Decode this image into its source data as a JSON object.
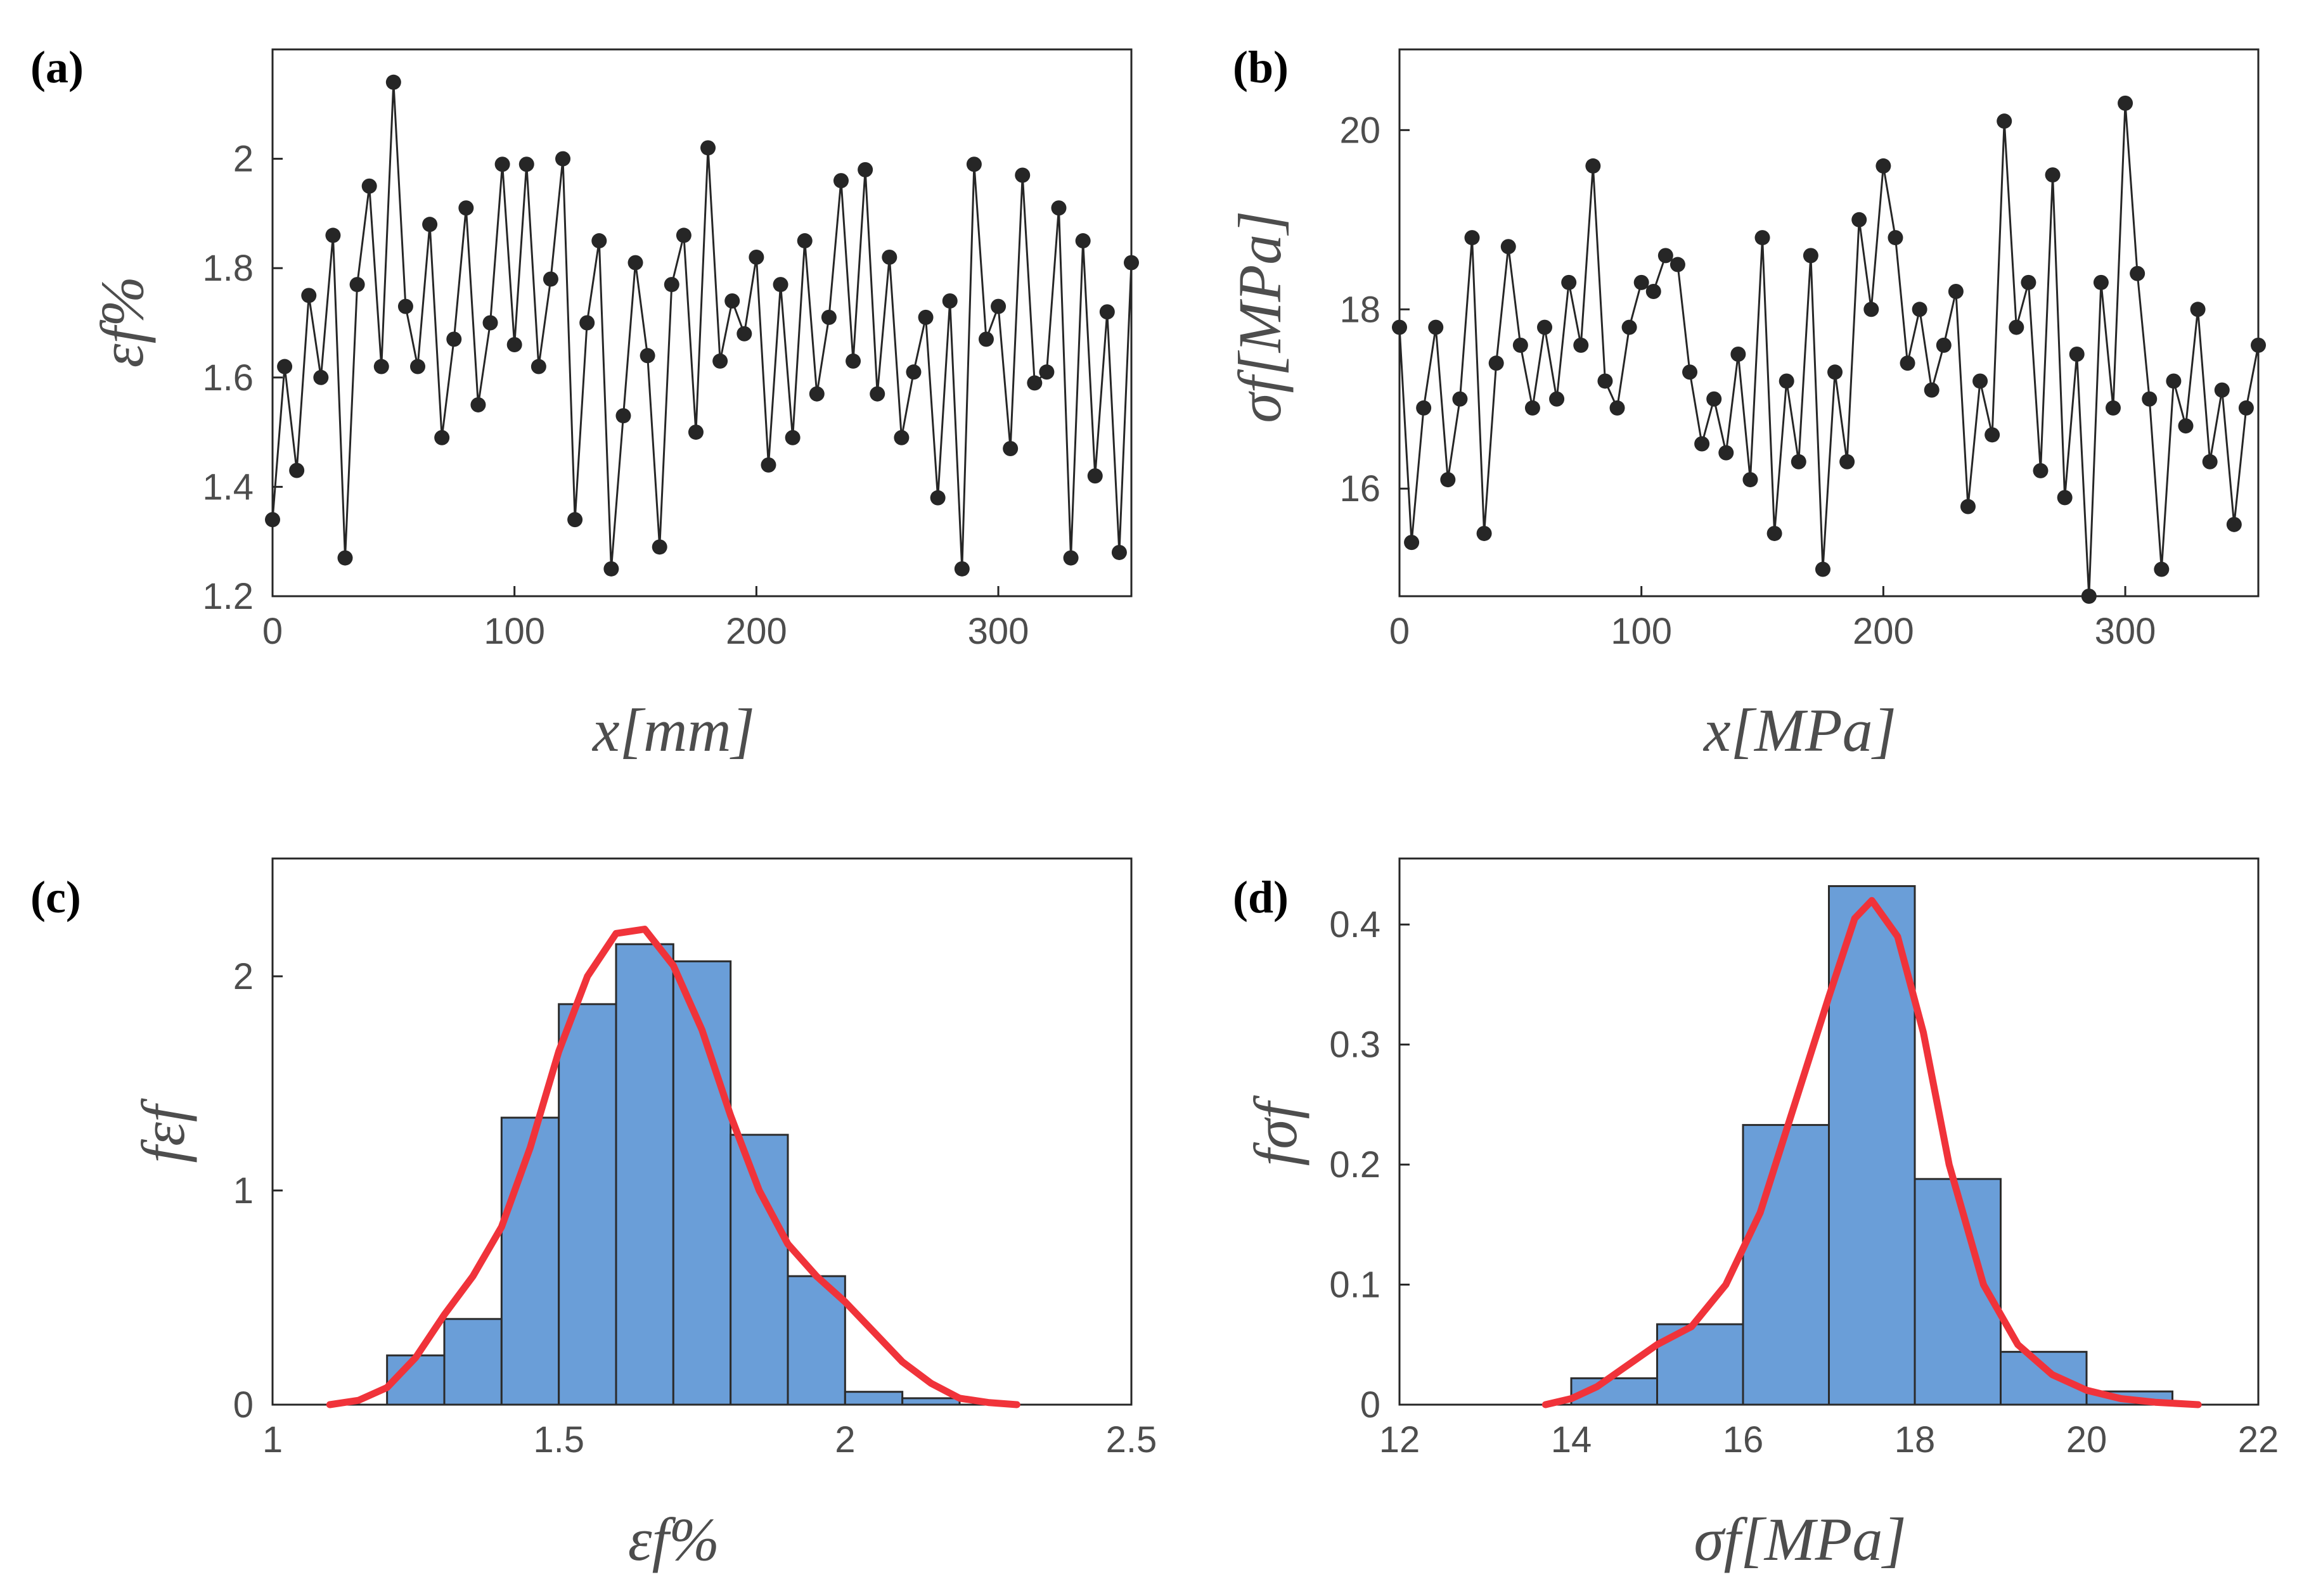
{
  "chart_data": [
    {
      "panel": "(a)",
      "type": "line",
      "marker": "dot",
      "xlabel": "x[mm]",
      "ylabel": "εf%",
      "xlim": [
        0,
        355
      ],
      "ylim": [
        1.2,
        2.2
      ],
      "xticks": [
        "0",
        "100",
        "200",
        "300"
      ],
      "yticks": [
        "1.2",
        "1.4",
        "1.6",
        "1.8",
        "2"
      ],
      "color": "#262626",
      "x": [
        0,
        5,
        10,
        15,
        20,
        25,
        30,
        35,
        40,
        45,
        50,
        55,
        60,
        65,
        70,
        75,
        80,
        85,
        90,
        95,
        100,
        105,
        110,
        115,
        120,
        125,
        130,
        135,
        140,
        145,
        150,
        155,
        160,
        165,
        170,
        175,
        180,
        185,
        190,
        195,
        200,
        205,
        210,
        215,
        220,
        225,
        230,
        235,
        240,
        245,
        250,
        255,
        260,
        265,
        270,
        275,
        280,
        285,
        290,
        295,
        300,
        305,
        310,
        315,
        320,
        325,
        330,
        335,
        340,
        345,
        350,
        355
      ],
      "y": [
        1.34,
        1.62,
        1.43,
        1.75,
        1.6,
        1.86,
        1.27,
        1.77,
        1.95,
        1.62,
        2.14,
        1.73,
        1.62,
        1.88,
        1.49,
        1.67,
        1.91,
        1.55,
        1.7,
        1.99,
        1.66,
        1.99,
        1.62,
        1.78,
        2.0,
        1.34,
        1.7,
        1.85,
        1.25,
        1.53,
        1.81,
        1.64,
        1.29,
        1.77,
        1.86,
        1.5,
        2.02,
        1.63,
        1.74,
        1.68,
        1.82,
        1.44,
        1.77,
        1.49,
        1.85,
        1.57,
        1.71,
        1.96,
        1.63,
        1.98,
        1.57,
        1.82,
        1.49,
        1.61,
        1.71,
        1.38,
        1.74,
        1.25,
        1.99,
        1.67,
        1.73,
        1.47,
        1.97,
        1.59,
        1.61,
        1.91,
        1.27,
        1.85,
        1.42,
        1.72,
        1.28,
        1.81
      ]
    },
    {
      "panel": "(b)",
      "type": "line",
      "marker": "dot",
      "xlabel": "x[MPa]",
      "ylabel": "σf[MPa]",
      "xlim": [
        0,
        355
      ],
      "ylim": [
        14.8,
        20.9
      ],
      "xticks": [
        "0",
        "100",
        "200",
        "300"
      ],
      "yticks": [
        "16",
        "18",
        "20"
      ],
      "color": "#262626",
      "x": [
        0,
        5,
        10,
        15,
        20,
        25,
        30,
        35,
        40,
        45,
        50,
        55,
        60,
        65,
        70,
        75,
        80,
        85,
        90,
        95,
        100,
        105,
        110,
        115,
        120,
        125,
        130,
        135,
        140,
        145,
        150,
        155,
        160,
        165,
        170,
        175,
        180,
        185,
        190,
        195,
        200,
        205,
        210,
        215,
        220,
        225,
        230,
        235,
        240,
        245,
        250,
        255,
        260,
        265,
        270,
        275,
        280,
        285,
        290,
        295,
        300,
        305,
        310,
        315,
        320,
        325,
        330,
        335,
        340,
        345,
        350,
        355
      ],
      "y": [
        17.8,
        15.4,
        16.9,
        17.8,
        16.1,
        17.0,
        18.8,
        15.5,
        17.4,
        18.7,
        17.6,
        16.9,
        17.8,
        17.0,
        18.3,
        17.6,
        19.6,
        17.2,
        16.9,
        17.8,
        18.3,
        18.2,
        18.6,
        18.5,
        17.3,
        16.5,
        17.0,
        16.4,
        17.5,
        16.1,
        18.8,
        15.5,
        17.2,
        16.3,
        18.6,
        15.1,
        17.3,
        16.3,
        19.0,
        18.0,
        19.6,
        18.8,
        17.4,
        18.0,
        17.1,
        17.6,
        18.2,
        15.8,
        17.2,
        16.6,
        20.1,
        17.8,
        18.3,
        16.2,
        19.5,
        15.9,
        17.5,
        14.8,
        18.3,
        16.9,
        20.3,
        18.4,
        17.0,
        15.1,
        17.2,
        16.7,
        18.0,
        16.3,
        17.1,
        15.6,
        16.9,
        17.6
      ]
    },
    {
      "panel": "(c)",
      "type": "histogram",
      "xlabel": "εf%",
      "ylabel": "fεf",
      "xlim": [
        1,
        2.5
      ],
      "ylim": [
        0,
        2.55
      ],
      "xticks": [
        "1",
        "1.5",
        "2",
        "2.5"
      ],
      "yticks": [
        "0",
        "1",
        "2"
      ],
      "bin_edges": [
        1.2,
        1.3,
        1.4,
        1.5,
        1.6,
        1.7,
        1.8,
        1.9,
        2.0,
        2.1,
        2.2
      ],
      "values": [
        0.23,
        0.4,
        1.34,
        1.87,
        2.15,
        2.07,
        1.26,
        0.6,
        0.06,
        0.03
      ],
      "bar_color": "#6a9ed8",
      "fit_color": "#f0333a",
      "fit_x": [
        1.1,
        1.15,
        1.2,
        1.25,
        1.3,
        1.35,
        1.4,
        1.45,
        1.5,
        1.55,
        1.6,
        1.65,
        1.7,
        1.75,
        1.8,
        1.85,
        1.9,
        1.95,
        2.0,
        2.05,
        2.1,
        2.15,
        2.2,
        2.25,
        2.3
      ],
      "fit_y": [
        0.0,
        0.02,
        0.08,
        0.22,
        0.42,
        0.6,
        0.83,
        1.2,
        1.65,
        2.0,
        2.2,
        2.22,
        2.05,
        1.75,
        1.35,
        1.0,
        0.75,
        0.6,
        0.48,
        0.34,
        0.2,
        0.1,
        0.03,
        0.01,
        0.0
      ]
    },
    {
      "panel": "(d)",
      "type": "histogram",
      "xlabel": "σf[MPa]",
      "ylabel": "fσf",
      "xlim": [
        12,
        22
      ],
      "ylim": [
        0,
        0.455
      ],
      "xticks": [
        "12",
        "14",
        "16",
        "18",
        "20",
        "22"
      ],
      "yticks": [
        "0",
        "0.1",
        "0.2",
        "0.3",
        "0.4"
      ],
      "bin_edges": [
        14,
        15,
        16,
        17,
        18,
        19,
        20,
        21
      ],
      "values": [
        0.022,
        0.067,
        0.233,
        0.432,
        0.188,
        0.044,
        0.011
      ],
      "bar_color": "#6a9ed8",
      "fit_color": "#f0333a",
      "fit_x": [
        13.7,
        14.0,
        14.3,
        14.6,
        15.0,
        15.4,
        15.8,
        16.2,
        16.6,
        17.0,
        17.3,
        17.5,
        17.8,
        18.1,
        18.4,
        18.8,
        19.2,
        19.6,
        20.0,
        20.4,
        20.8,
        21.3
      ],
      "fit_y": [
        0.0,
        0.005,
        0.015,
        0.03,
        0.05,
        0.065,
        0.1,
        0.16,
        0.25,
        0.34,
        0.405,
        0.42,
        0.39,
        0.31,
        0.2,
        0.1,
        0.05,
        0.025,
        0.012,
        0.005,
        0.002,
        0.0
      ]
    }
  ]
}
